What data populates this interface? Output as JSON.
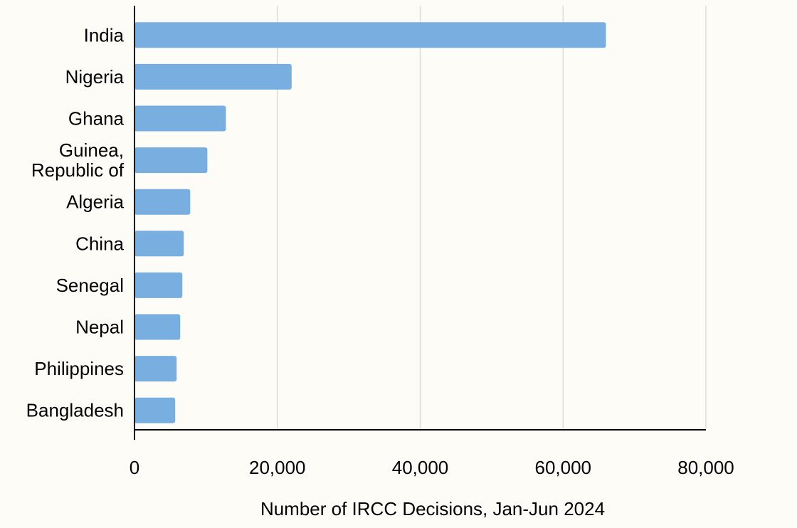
{
  "chart_data": {
    "type": "bar",
    "orientation": "horizontal",
    "categories": [
      "India",
      "Nigeria",
      "Ghana",
      "Guinea, Republic of",
      "Algeria",
      "China",
      "Senegal",
      "Nepal",
      "Philippines",
      "Bangladesh"
    ],
    "category_label_lines": [
      [
        "India"
      ],
      [
        "Nigeria"
      ],
      [
        "Ghana"
      ],
      [
        "Guinea,",
        "Republic of"
      ],
      [
        "Algeria"
      ],
      [
        "China"
      ],
      [
        "Senegal"
      ],
      [
        "Nepal"
      ],
      [
        "Philippines"
      ],
      [
        "Bangladesh"
      ]
    ],
    "values": [
      66000,
      22000,
      12800,
      10200,
      7800,
      6900,
      6700,
      6400,
      5900,
      5700
    ],
    "xlabel": "Number of IRCC Decisions, Jan-Jun 2024",
    "ylabel": "",
    "xlim": [
      0,
      80000
    ],
    "xticks": [
      0,
      20000,
      40000,
      60000,
      80000
    ],
    "xtick_labels": [
      "0",
      "20,000",
      "40,000",
      "60,000",
      "80,000"
    ],
    "grid": "vertical",
    "legend": "none",
    "bar_color": "#79aee0"
  }
}
